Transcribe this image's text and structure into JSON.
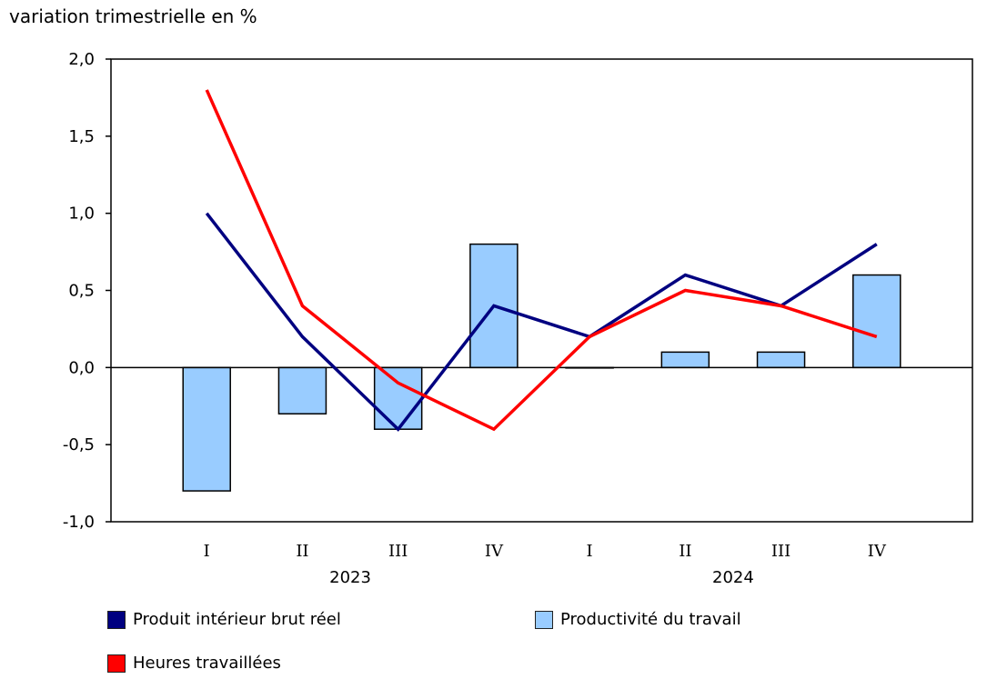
{
  "chart_data": {
    "type": "bar+line",
    "ylabel": "variation trimestrielle en %",
    "ylim": [
      -1.0,
      2.0
    ],
    "yticks": [
      "-1,0",
      "-0,5",
      "0,0",
      "0,5",
      "1,0",
      "1,5",
      "2,0"
    ],
    "ytick_values": [
      -1.0,
      -0.5,
      0.0,
      0.5,
      1.0,
      1.5,
      2.0
    ],
    "categories": [
      "I",
      "II",
      "III",
      "IV",
      "I",
      "II",
      "III",
      "IV"
    ],
    "groups": [
      {
        "label": "2023",
        "categories": [
          "I",
          "II",
          "III",
          "IV"
        ]
      },
      {
        "label": "2024",
        "categories": [
          "I",
          "II",
          "III",
          "IV"
        ]
      }
    ],
    "grid": false,
    "legend_position": "bottom",
    "series": [
      {
        "name": "Produit intérieur brut réel",
        "kind": "line",
        "color": "#000080",
        "values": [
          1.0,
          0.2,
          -0.4,
          0.4,
          0.2,
          0.6,
          0.4,
          0.8
        ]
      },
      {
        "name": "Productivité du travail",
        "kind": "bar",
        "color": "#99ccff",
        "values": [
          -0.8,
          -0.3,
          -0.4,
          0.8,
          0.0,
          0.1,
          0.1,
          0.6
        ]
      },
      {
        "name": "Heures travaillées",
        "kind": "line",
        "color": "#ff0000",
        "values": [
          1.8,
          0.4,
          -0.1,
          -0.4,
          0.2,
          0.5,
          0.4,
          0.2
        ]
      }
    ]
  }
}
